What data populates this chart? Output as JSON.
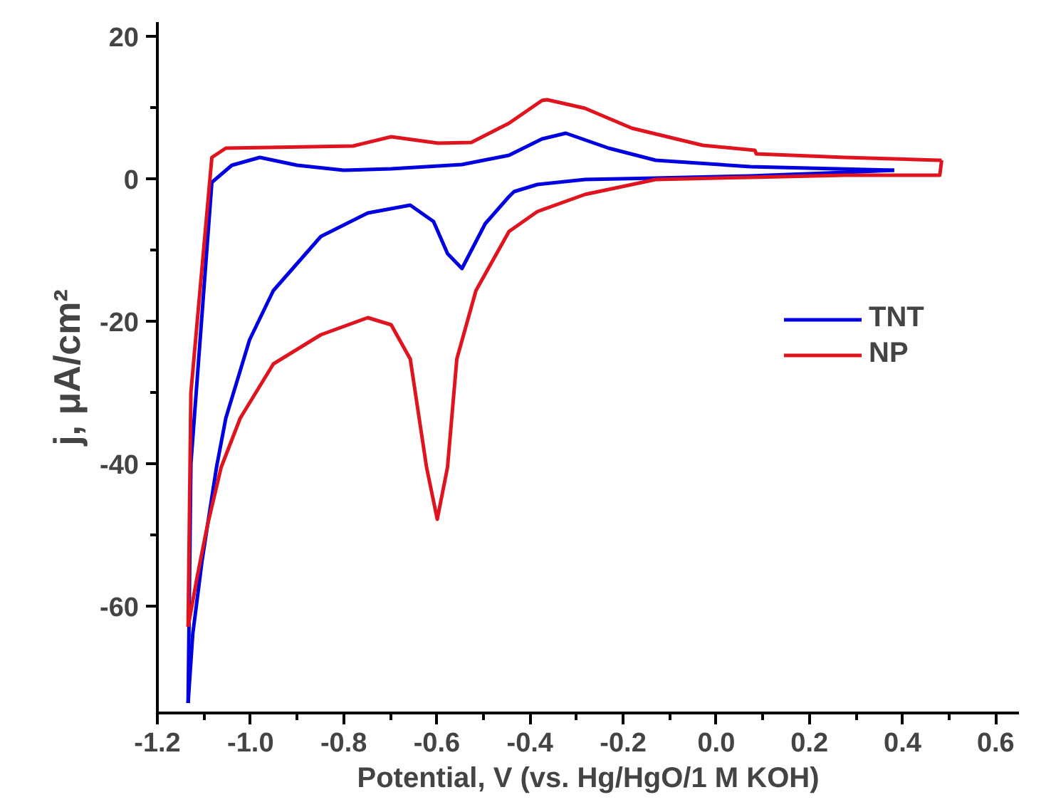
{
  "chart_data": {
    "type": "line",
    "xlabel": "Potential, V (vs. Hg/HgO/1 M KOH)",
    "ylabel": "j, μA/cm²",
    "xlim": [
      -1.2,
      0.65
    ],
    "ylim": [
      -75,
      22
    ],
    "xticks": [
      -1.2,
      {
        "value": -1,
        "label": "-1.0"
      },
      -0.8,
      -0.6,
      -0.4,
      -0.2,
      {
        "value": 0,
        "label": "0.0"
      },
      0.2,
      0.4,
      0.6
    ],
    "yticks": [
      -60,
      -40,
      -20,
      0,
      20
    ],
    "grid": false,
    "legend": "right",
    "marker": "none",
    "line_style": "solid",
    "series": [
      {
        "name": "TNT",
        "color": "#0000e0",
        "x": [
          -1.134,
          -1.128,
          -1.083,
          -1.04,
          -0.98,
          -0.9,
          -0.8,
          -0.698,
          -0.546,
          -0.445,
          -0.374,
          -0.323,
          -0.231,
          -0.13,
          0.073,
          0.382
        ],
        "values": [
          -73.6,
          -40,
          -0.5,
          1.9,
          3.0,
          1.9,
          1.2,
          1.4,
          2.0,
          3.3,
          5.6,
          6.4,
          4.3,
          2.6,
          1.7,
          1.2
        ]
      },
      {
        "color": "#0000e0",
        "x": [
          0.382,
          0.276,
          0.073,
          -0.13,
          -0.282,
          -0.384,
          -0.434,
          -0.445,
          -0.496,
          -0.546,
          -0.577,
          -0.607,
          -0.657,
          -0.748,
          -0.849,
          -0.951,
          -1.002,
          -1.053,
          -1.073,
          -1.104,
          -1.124,
          -1.134
        ],
        "values": [
          1.2,
          0.9,
          0.4,
          0.1,
          -0.1,
          -0.8,
          -1.8,
          -2.5,
          -6.3,
          -12.6,
          -10.5,
          -6.0,
          -3.7,
          -4.8,
          -8.1,
          -15.7,
          -22.6,
          -33.6,
          -40.5,
          -53.6,
          -63.9,
          -73.6
        ]
      },
      {
        "name": "NP",
        "color": "#e0141e",
        "x": [
          -1.134,
          -1.128,
          -1.083,
          -1.053,
          -0.78,
          -0.698,
          -0.597,
          -0.526,
          -0.445,
          -0.374,
          -0.363,
          -0.282,
          -0.181,
          -0.029,
          0.083,
          0.086,
          0.276,
          0.478,
          0.484
        ],
        "values": [
          -62.9,
          -30,
          3.0,
          4.3,
          4.6,
          5.9,
          5.0,
          5.1,
          7.8,
          11.0,
          11.1,
          9.9,
          7.1,
          4.7,
          4.0,
          3.5,
          3.0,
          2.6,
          2.6
        ]
      },
      {
        "color": "#e0141e",
        "x": [
          0.484,
          0.48,
          0.276,
          0.075,
          -0.13,
          -0.282,
          -0.384,
          -0.445,
          -0.516,
          -0.557,
          -0.577,
          -0.599,
          -0.622,
          -0.657,
          -0.698,
          -0.748,
          -0.849,
          -0.951,
          -1.022,
          -1.063,
          -1.093,
          -1.114,
          -1.134
        ],
        "values": [
          2.6,
          0.5,
          0.5,
          0.2,
          -0.1,
          -2.2,
          -4.6,
          -7.4,
          -15.7,
          -25.3,
          -40.5,
          -47.8,
          -40.5,
          -25.3,
          -20.5,
          -19.5,
          -21.9,
          -26.0,
          -33.6,
          -40.5,
          -48.8,
          -55.7,
          -62.9
        ]
      }
    ]
  }
}
